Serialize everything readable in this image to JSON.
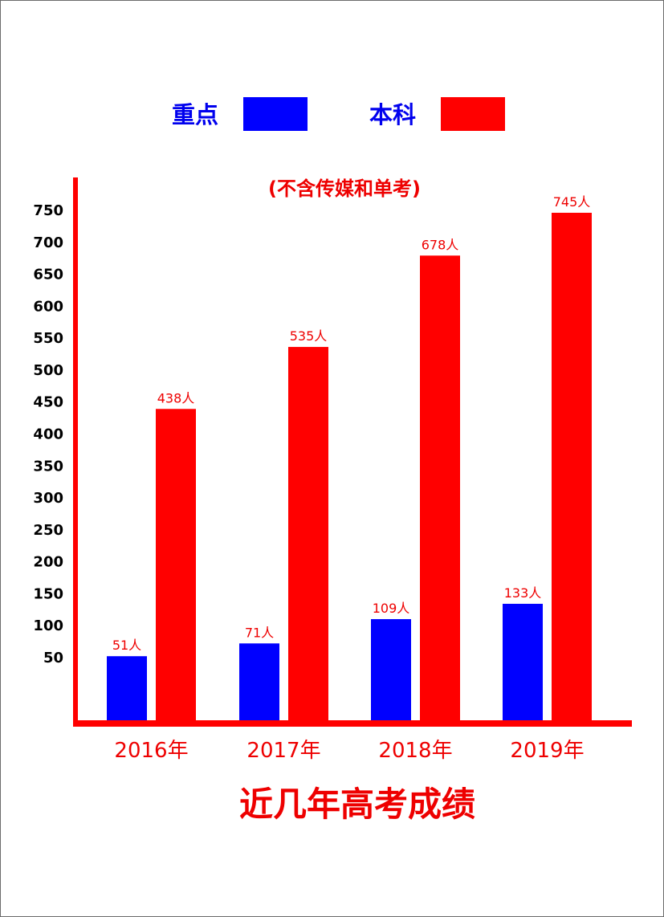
{
  "colors": {
    "key": "#0000ff",
    "regular": "#ff0000",
    "text_red": "#ee0000",
    "text_blue": "#0000ee",
    "axis": "#ff0000"
  },
  "legend": {
    "key_label": "重点",
    "regular_label": "本科"
  },
  "chart_data": {
    "type": "bar",
    "title": "近几年高考成绩",
    "subtitle": "(不含传媒和单考)",
    "categories": [
      "2016年",
      "2017年",
      "2018年",
      "2019年"
    ],
    "series": [
      {
        "name": "重点",
        "values": [
          51,
          71,
          109,
          133
        ],
        "labels": [
          "51人",
          "71人",
          "109人",
          "133人"
        ]
      },
      {
        "name": "本科",
        "values": [
          438,
          535,
          678,
          745
        ],
        "labels": [
          "438人",
          "535人",
          "678人",
          "745人"
        ]
      }
    ],
    "yticks": [
      50,
      100,
      150,
      200,
      250,
      300,
      350,
      400,
      450,
      500,
      550,
      600,
      650,
      700,
      750
    ],
    "ylim": [
      0,
      750
    ],
    "grid": false,
    "legend_position": "top"
  }
}
